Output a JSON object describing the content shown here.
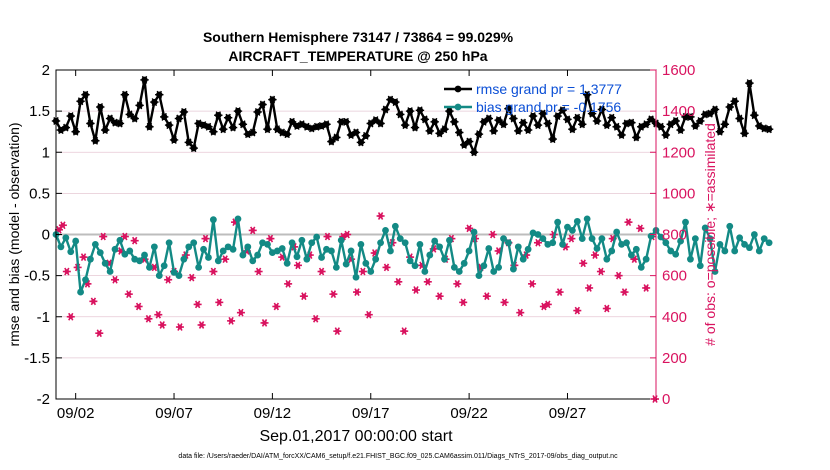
{
  "title_line1": "Southern Hemisphere 73147 / 73864 = 99.029%",
  "title_line2": "AIRCRAFT_TEMPERATURE @ 250 hPa",
  "footnote": "data file: /Users/raeder/DAI/ATM_forcXX/CAM6_setup/f.e21.FHIST_BGC.f09_025.CAM6assim.011/Diags_NTrS_2017-09/obs_diag_output.nc",
  "colors": {
    "rmse": "#000000",
    "bias": "#138a85",
    "obs": "#d9135f",
    "zero_line": "#bdbdbd",
    "grid": "#e6c8d4"
  },
  "chart_data": {
    "type": "line",
    "xlabel": "Sep.01,2017 00:00:00 start",
    "ylabel_left": "rmse and bias (model - observation)",
    "ylabel_right": "# of obs: o=possible; ∗=assimilated",
    "ylim_left": [
      -2,
      2
    ],
    "ylim_right": [
      0,
      1600
    ],
    "xlim": [
      1.0,
      31.5
    ],
    "yticks_left": [
      "2",
      "1.5",
      "1",
      "0.5",
      "0",
      "-0.5",
      "-1",
      "-1.5",
      "-2"
    ],
    "yticks_right": [
      "1600",
      "1400",
      "1200",
      "1000",
      "800",
      "600",
      "400",
      "200",
      "0"
    ],
    "xtick_values": [
      2,
      7,
      12,
      17,
      22,
      27
    ],
    "xtick_labels": [
      "09/02",
      "09/07",
      "09/12",
      "09/17",
      "09/22",
      "09/27"
    ],
    "grid_right": true,
    "legend_placement": "top-right",
    "legend": [
      {
        "name": "rmse grand pr = 1.3777",
        "color": "#000000"
      },
      {
        "name": "bias grand pr = -0.1756",
        "color": "#138a85"
      }
    ],
    "x_start": 1.0,
    "x_step": 0.25,
    "series": [
      {
        "name": "rmse grand pr = 1.3777",
        "values": [
          1.38,
          1.27,
          1.3,
          1.44,
          1.25,
          1.62,
          1.7,
          1.35,
          1.14,
          1.55,
          1.27,
          1.41,
          1.36,
          1.35,
          1.7,
          1.46,
          1.41,
          1.57,
          1.88,
          1.31,
          1.61,
          1.7,
          1.43,
          1.33,
          1.15,
          1.41,
          1.49,
          1.12,
          1.05,
          1.35,
          1.33,
          1.31,
          1.25,
          1.45,
          1.28,
          1.42,
          1.3,
          1.5,
          1.34,
          1.22,
          1.24,
          1.49,
          1.58,
          1.28,
          1.64,
          1.28,
          1.24,
          1.22,
          1.37,
          1.32,
          1.34,
          1.31,
          1.29,
          1.31,
          1.32,
          1.34,
          1.13,
          1.18,
          1.37,
          1.37,
          1.21,
          1.24,
          1.12,
          1.2,
          1.35,
          1.39,
          1.35,
          1.52,
          1.64,
          1.61,
          1.46,
          1.33,
          1.5,
          1.3,
          1.51,
          1.4,
          1.26,
          1.37,
          1.23,
          1.28,
          1.5,
          1.37,
          1.24,
          1.09,
          1.13,
          1.0,
          1.22,
          1.37,
          1.41,
          1.26,
          1.39,
          1.34,
          1.53,
          1.41,
          1.26,
          1.36,
          1.27,
          1.44,
          1.33,
          1.47,
          1.35,
          1.16,
          1.44,
          1.51,
          1.4,
          1.28,
          1.42,
          1.34,
          1.7,
          1.47,
          1.38,
          1.52,
          1.33,
          1.42,
          1.31,
          1.21,
          1.35,
          1.36,
          1.18,
          1.31,
          1.34,
          1.4,
          1.35,
          1.31,
          1.21,
          1.34,
          1.38,
          1.27,
          1.43,
          1.43,
          1.32,
          1.38,
          1.46,
          1.47,
          1.52,
          1.25,
          1.34,
          1.55,
          1.62,
          1.41,
          1.23,
          1.84,
          1.45,
          1.32,
          1.29,
          1.28
        ]
      },
      {
        "name": "bias grand pr = -0.1756",
        "values": [
          0.0,
          -0.15,
          -0.04,
          -0.21,
          -0.08,
          -0.7,
          -0.55,
          -0.3,
          -0.12,
          -0.22,
          -0.35,
          -0.45,
          -0.18,
          -0.07,
          -0.24,
          -0.2,
          -0.3,
          -0.32,
          -0.25,
          -0.4,
          -0.15,
          -0.5,
          -0.38,
          -0.1,
          -0.46,
          -0.5,
          -0.3,
          -0.15,
          -0.1,
          -0.4,
          -0.18,
          -0.28,
          0.18,
          -0.32,
          -0.2,
          -0.15,
          -0.18,
          0.19,
          -0.25,
          -0.15,
          -0.32,
          -0.25,
          -0.1,
          -0.12,
          -0.22,
          -0.2,
          -0.17,
          -0.35,
          -0.1,
          -0.27,
          -0.07,
          -0.3,
          -0.1,
          -0.03,
          -0.28,
          -0.18,
          -0.2,
          -0.4,
          -0.07,
          -0.36,
          -0.2,
          -0.52,
          -0.12,
          -0.35,
          -0.45,
          -0.3,
          -0.1,
          0.05,
          -0.2,
          0.1,
          -0.05,
          -0.1,
          -0.32,
          -0.38,
          -0.12,
          -0.45,
          -0.25,
          -0.08,
          -0.15,
          -0.3,
          -0.07,
          -0.4,
          -0.45,
          -0.35,
          -0.2,
          0.03,
          -0.5,
          -0.38,
          -0.17,
          -0.45,
          -0.4,
          -0.05,
          -0.1,
          -0.42,
          -0.15,
          -0.3,
          -0.18,
          0.02,
          0.0,
          -0.05,
          -0.12,
          -0.1,
          0.15,
          -0.12,
          0.09,
          0.05,
          0.16,
          -0.05,
          0.19,
          -0.05,
          -0.17,
          -0.05,
          -0.3,
          -0.2,
          0.03,
          -0.12,
          -0.1,
          -0.25,
          -0.18,
          -0.4,
          -0.3,
          -0.02,
          0.05,
          -0.03,
          -0.1,
          -0.2,
          -0.24,
          -0.08,
          0.15,
          -0.3,
          -0.05,
          -0.38,
          0.08,
          -0.05,
          -0.45,
          -0.12,
          -0.2,
          0.1,
          -0.2,
          -0.04,
          -0.12,
          -0.16,
          0.0,
          -0.2,
          -0.05,
          -0.1
        ]
      }
    ],
    "obs_points": [
      {
        "x": 1.15,
        "y": 823
      },
      {
        "x": 1.35,
        "y": 845
      },
      {
        "x": 1.55,
        "y": 620
      },
      {
        "x": 1.75,
        "y": 400
      },
      {
        "x": 2.1,
        "y": 640
      },
      {
        "x": 2.4,
        "y": 690
      },
      {
        "x": 2.6,
        "y": 560
      },
      {
        "x": 2.9,
        "y": 475
      },
      {
        "x": 3.2,
        "y": 320
      },
      {
        "x": 3.4,
        "y": 790
      },
      {
        "x": 3.7,
        "y": 660
      },
      {
        "x": 4.0,
        "y": 580
      },
      {
        "x": 4.3,
        "y": 720
      },
      {
        "x": 4.5,
        "y": 790
      },
      {
        "x": 4.7,
        "y": 510
      },
      {
        "x": 5.0,
        "y": 770
      },
      {
        "x": 5.2,
        "y": 450
      },
      {
        "x": 5.5,
        "y": 680
      },
      {
        "x": 5.7,
        "y": 390
      },
      {
        "x": 6.0,
        "y": 640
      },
      {
        "x": 6.2,
        "y": 410
      },
      {
        "x": 6.4,
        "y": 360
      },
      {
        "x": 6.7,
        "y": 580
      },
      {
        "x": 7.0,
        "y": 620
      },
      {
        "x": 7.3,
        "y": 350
      },
      {
        "x": 7.6,
        "y": 700
      },
      {
        "x": 7.9,
        "y": 590
      },
      {
        "x": 8.2,
        "y": 460
      },
      {
        "x": 8.4,
        "y": 360
      },
      {
        "x": 8.6,
        "y": 780
      },
      {
        "x": 9.0,
        "y": 620
      },
      {
        "x": 9.3,
        "y": 470
      },
      {
        "x": 9.6,
        "y": 680
      },
      {
        "x": 9.9,
        "y": 380
      },
      {
        "x": 10.1,
        "y": 860
      },
      {
        "x": 10.4,
        "y": 420
      },
      {
        "x": 10.7,
        "y": 720
      },
      {
        "x": 11.0,
        "y": 820
      },
      {
        "x": 11.3,
        "y": 620
      },
      {
        "x": 11.6,
        "y": 370
      },
      {
        "x": 11.9,
        "y": 780
      },
      {
        "x": 12.2,
        "y": 450
      },
      {
        "x": 12.5,
        "y": 690
      },
      {
        "x": 12.8,
        "y": 560
      },
      {
        "x": 13.1,
        "y": 740
      },
      {
        "x": 13.3,
        "y": 650
      },
      {
        "x": 13.6,
        "y": 500
      },
      {
        "x": 13.9,
        "y": 700
      },
      {
        "x": 14.2,
        "y": 390
      },
      {
        "x": 14.5,
        "y": 620
      },
      {
        "x": 14.8,
        "y": 790
      },
      {
        "x": 15.1,
        "y": 510
      },
      {
        "x": 15.3,
        "y": 330
      },
      {
        "x": 15.6,
        "y": 790
      },
      {
        "x": 15.8,
        "y": 800
      },
      {
        "x": 16.0,
        "y": 680
      },
      {
        "x": 16.3,
        "y": 520
      },
      {
        "x": 16.6,
        "y": 620
      },
      {
        "x": 16.9,
        "y": 410
      },
      {
        "x": 17.2,
        "y": 710
      },
      {
        "x": 17.5,
        "y": 890
      },
      {
        "x": 17.8,
        "y": 640
      },
      {
        "x": 18.1,
        "y": 760
      },
      {
        "x": 18.4,
        "y": 570
      },
      {
        "x": 18.7,
        "y": 330
      },
      {
        "x": 19.0,
        "y": 690
      },
      {
        "x": 19.3,
        "y": 530
      },
      {
        "x": 19.6,
        "y": 650
      },
      {
        "x": 19.9,
        "y": 570
      },
      {
        "x": 20.2,
        "y": 730
      },
      {
        "x": 20.5,
        "y": 500
      },
      {
        "x": 20.8,
        "y": 680
      },
      {
        "x": 21.1,
        "y": 780
      },
      {
        "x": 21.4,
        "y": 560
      },
      {
        "x": 21.7,
        "y": 470
      },
      {
        "x": 22.0,
        "y": 830
      },
      {
        "x": 22.3,
        "y": 780
      },
      {
        "x": 22.6,
        "y": 640
      },
      {
        "x": 22.9,
        "y": 500
      },
      {
        "x": 23.2,
        "y": 800
      },
      {
        "x": 23.5,
        "y": 720
      },
      {
        "x": 23.8,
        "y": 470
      },
      {
        "x": 24.0,
        "y": 760
      },
      {
        "x": 24.3,
        "y": 650
      },
      {
        "x": 24.6,
        "y": 420
      },
      {
        "x": 24.9,
        "y": 700
      },
      {
        "x": 25.2,
        "y": 560
      },
      {
        "x": 25.5,
        "y": 760
      },
      {
        "x": 25.8,
        "y": 450
      },
      {
        "x": 26.0,
        "y": 460
      },
      {
        "x": 26.3,
        "y": 800
      },
      {
        "x": 26.6,
        "y": 520
      },
      {
        "x": 26.9,
        "y": 740
      },
      {
        "x": 27.2,
        "y": 780
      },
      {
        "x": 27.5,
        "y": 430
      },
      {
        "x": 27.8,
        "y": 660
      },
      {
        "x": 28.1,
        "y": 540
      },
      {
        "x": 28.4,
        "y": 700
      },
      {
        "x": 28.7,
        "y": 620
      },
      {
        "x": 29.0,
        "y": 440
      },
      {
        "x": 29.3,
        "y": 780
      },
      {
        "x": 29.6,
        "y": 600
      },
      {
        "x": 29.9,
        "y": 520
      },
      {
        "x": 30.1,
        "y": 860
      },
      {
        "x": 30.4,
        "y": 680
      },
      {
        "x": 30.7,
        "y": 830
      },
      {
        "x": 31.0,
        "y": 540
      },
      {
        "x": 31.3,
        "y": 790
      },
      {
        "x": 31.45,
        "y": 0
      }
    ]
  }
}
